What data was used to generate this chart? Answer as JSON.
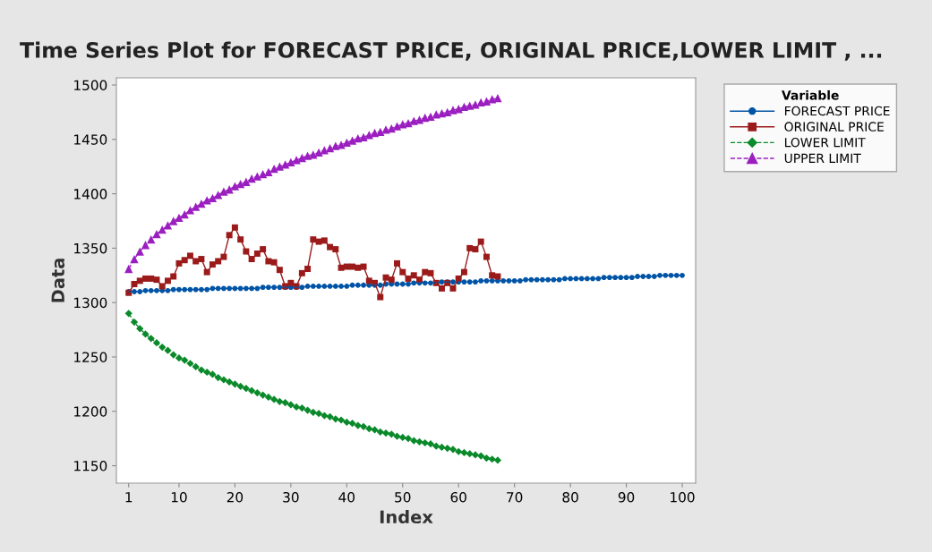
{
  "chart_data": {
    "type": "line",
    "title": "Time Series Plot for FORECAST PRICE, ORIGINAL PRICE,LOWER LIMIT , ...",
    "xlabel": "Index",
    "ylabel": "Data",
    "legend_title": "Variable",
    "legend": "right",
    "grid": false,
    "x": [
      1,
      2,
      3,
      4,
      5,
      6,
      7,
      8,
      9,
      10,
      11,
      12,
      13,
      14,
      15,
      16,
      17,
      18,
      19,
      20,
      21,
      22,
      23,
      24,
      25,
      26,
      27,
      28,
      29,
      30,
      31,
      32,
      33,
      34,
      35,
      36,
      37,
      38,
      39,
      40,
      41,
      42,
      43,
      44,
      45,
      46,
      47,
      48,
      49,
      50,
      51,
      52,
      53,
      54,
      55,
      56,
      57,
      58,
      59,
      60,
      61,
      62,
      63,
      64,
      65,
      66,
      67,
      68,
      69,
      70,
      71,
      72,
      73,
      74,
      75,
      76,
      77,
      78,
      79,
      80,
      81,
      82,
      83,
      84,
      85,
      86,
      87,
      88,
      89,
      90,
      91,
      92,
      93,
      94,
      95,
      96,
      97,
      98,
      99,
      100
    ],
    "xlim": [
      -1.2,
      102.4
    ],
    "xticks": [
      1,
      10,
      20,
      30,
      40,
      50,
      60,
      70,
      80,
      90,
      100
    ],
    "ylim": [
      1134,
      1506.6
    ],
    "yticks": [
      1150,
      1200,
      1250,
      1300,
      1350,
      1400,
      1450,
      1500
    ],
    "series": [
      {
        "name": "FORECAST PRICE",
        "color": "#0054a6",
        "marker": "circle",
        "line_style": "solid",
        "values": [
          1310,
          1310,
          1310,
          1311,
          1311,
          1311,
          1311,
          1311,
          1312,
          1312,
          1312,
          1312,
          1312,
          1312,
          1312,
          1313,
          1313,
          1313,
          1313,
          1313,
          1313,
          1313,
          1313,
          1313,
          1314,
          1314,
          1314,
          1314,
          1314,
          1314,
          1314,
          1314,
          1315,
          1315,
          1315,
          1315,
          1315,
          1315,
          1315,
          1315,
          1316,
          1316,
          1316,
          1316,
          1316,
          1316,
          1317,
          1317,
          1317,
          1317,
          1317,
          1318,
          1318,
          1318,
          1318,
          1318,
          1319,
          1319,
          1319,
          1319,
          1319,
          1319,
          1319,
          1320,
          1320,
          1320,
          1320,
          1320,
          1320,
          1320,
          1320,
          1321,
          1321,
          1321,
          1321,
          1321,
          1321,
          1321,
          1322,
          1322,
          1322,
          1322,
          1322,
          1322,
          1322,
          1323,
          1323,
          1323,
          1323,
          1323,
          1323,
          1324,
          1324,
          1324,
          1324,
          1325,
          1325,
          1325,
          1325,
          1325
        ]
      },
      {
        "name": "ORIGINAL PRICE",
        "color": "#9b1b1b",
        "marker": "square",
        "line_style": "solid",
        "values": [
          1309,
          1317,
          1320,
          1322,
          1322,
          1321,
          1315,
          1320,
          1324,
          1336,
          1339,
          1343,
          1338,
          1340,
          1328,
          1335,
          1338,
          1342,
          1362,
          1369,
          1358,
          1347,
          1340,
          1345,
          1349,
          1338,
          1337,
          1330,
          1315,
          1318,
          1315,
          1327,
          1331,
          1358,
          1356,
          1357,
          1351,
          1349,
          1332,
          1333,
          1333,
          1332,
          1333,
          1320,
          1318,
          1305,
          1323,
          1321,
          1336,
          1328,
          1322,
          1325,
          1321,
          1328,
          1327,
          1318,
          1313,
          1318,
          1313,
          1322,
          1328,
          1350,
          1349,
          1356,
          1342,
          1325,
          1324,
          null,
          null,
          null,
          null,
          null,
          null,
          null,
          null,
          null,
          null,
          null,
          null,
          null,
          null,
          null,
          null,
          null,
          null,
          null,
          null,
          null,
          null,
          null,
          null,
          null,
          null,
          null,
          null,
          null,
          null,
          null,
          null,
          null
        ]
      },
      {
        "name": "LOWER LIMIT",
        "color": "#0a8a2a",
        "marker": "diamond",
        "line_style": "dashed",
        "values": [
          1290,
          1282,
          1276,
          1271,
          1267,
          1263,
          1259,
          1256,
          1252,
          1249,
          1247,
          1244,
          1241,
          1238,
          1236,
          1234,
          1231,
          1229,
          1227,
          1225,
          1223,
          1221,
          1219,
          1217,
          1215,
          1213,
          1211,
          1209,
          1208,
          1206,
          1204,
          1203,
          1201,
          1199,
          1198,
          1196,
          1195,
          1193,
          1192,
          1190,
          1189,
          1187,
          1186,
          1184,
          1183,
          1181,
          1180,
          1179,
          1177,
          1176,
          1175,
          1173,
          1172,
          1171,
          1170,
          1168,
          1167,
          1166,
          1165,
          1163,
          1162,
          1161,
          1160,
          1159,
          1157,
          1156,
          1155,
          null,
          null,
          null,
          null,
          null,
          null,
          null,
          null,
          null,
          null,
          null,
          null,
          null,
          null,
          null,
          null,
          null,
          null,
          null,
          null,
          null,
          null,
          null,
          null,
          null,
          null,
          null,
          null,
          null,
          null,
          null,
          null,
          null
        ]
      },
      {
        "name": "UPPER LIMIT",
        "color": "#9b1fc0",
        "marker": "triangle",
        "line_style": "dashed",
        "values": [
          1331,
          1340,
          1347,
          1353,
          1358,
          1363,
          1367,
          1371,
          1375,
          1378,
          1381,
          1385,
          1388,
          1391,
          1394,
          1396,
          1399,
          1402,
          1404,
          1407,
          1409,
          1411,
          1414,
          1416,
          1418,
          1420,
          1423,
          1425,
          1427,
          1429,
          1431,
          1433,
          1435,
          1436,
          1438,
          1440,
          1442,
          1444,
          1445,
          1447,
          1449,
          1451,
          1452,
          1454,
          1456,
          1457,
          1459,
          1460,
          1462,
          1464,
          1465,
          1467,
          1468,
          1470,
          1471,
          1473,
          1474,
          1475,
          1477,
          1478,
          1480,
          1481,
          1482,
          1484,
          1485,
          1487,
          1488,
          null,
          null,
          null,
          null,
          null,
          null,
          null,
          null,
          null,
          null,
          null,
          null,
          null,
          null,
          null,
          null,
          null,
          null,
          null,
          null,
          null,
          null,
          null,
          null,
          null,
          null,
          null,
          null,
          null,
          null,
          null,
          null,
          null
        ]
      }
    ]
  }
}
